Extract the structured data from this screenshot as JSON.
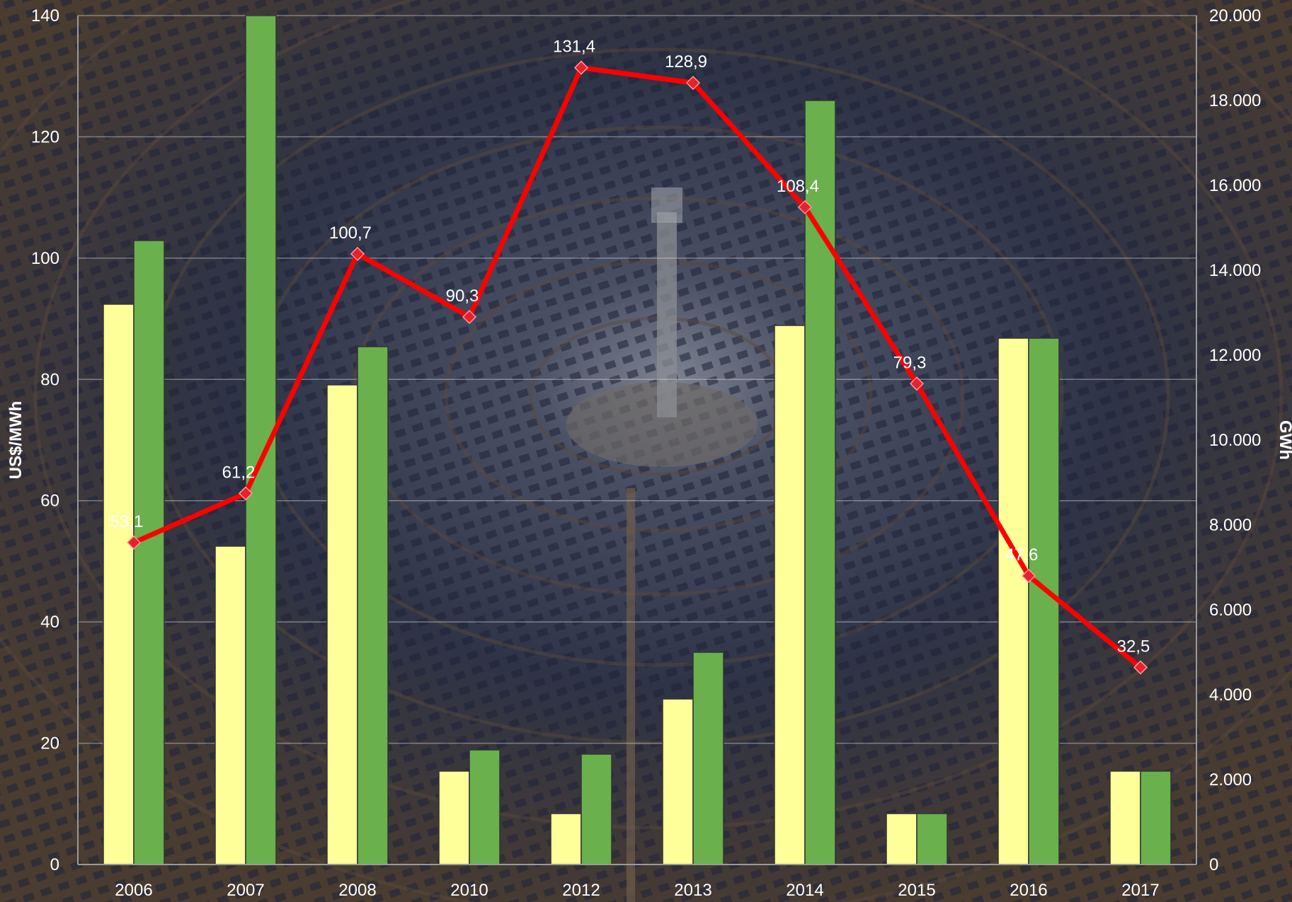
{
  "chart_data": {
    "type": "bar",
    "categories": [
      "2006",
      "2007",
      "2008",
      "2010",
      "2012",
      "2013",
      "2014",
      "2015",
      "2016",
      "2017"
    ],
    "series": [
      {
        "kind": "bar",
        "axis": "right",
        "color": "#ffff99",
        "values": [
          13200,
          7500,
          11300,
          2200,
          1200,
          3900,
          12700,
          1200,
          12400,
          2200
        ]
      },
      {
        "kind": "bar",
        "axis": "right",
        "color": "#6ab04c",
        "values": [
          14700,
          20000,
          12200,
          2700,
          2600,
          5000,
          18000,
          1200,
          12400,
          2200
        ]
      },
      {
        "kind": "line",
        "axis": "left",
        "color": "#ff0000",
        "marker_color": "#e8202e",
        "values": [
          53.1,
          61.2,
          100.7,
          90.3,
          131.4,
          128.9,
          108.4,
          79.3,
          47.6,
          32.5
        ],
        "labels": [
          "53,1",
          "61,2",
          "100,7",
          "90,3",
          "131,4",
          "128,9",
          "108,4",
          "79,3",
          "47,6",
          "32,5"
        ]
      }
    ],
    "ylabel": "US$/MWh",
    "y2label": "GWh",
    "ylim": [
      0,
      140
    ],
    "y2lim": [
      0,
      20000
    ],
    "yticks": [
      "0",
      "20",
      "40",
      "60",
      "80",
      "100",
      "120",
      "140"
    ],
    "y2ticks": [
      "0",
      "2.000",
      "4.000",
      "6.000",
      "8.000",
      "10.000",
      "12.000",
      "14.000",
      "16.000",
      "18.000",
      "20.000"
    ],
    "grid": true
  }
}
